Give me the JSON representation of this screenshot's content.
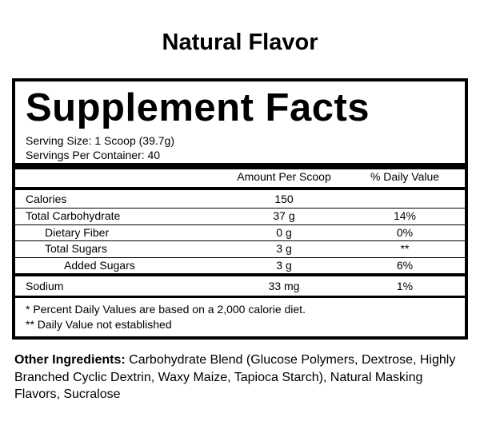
{
  "header": {
    "title": "Natural Flavor"
  },
  "panel": {
    "title": "Supplement Facts",
    "serving_size": "Serving Size: 1 Scoop (39.7g)",
    "servings_per_container": "Servings Per Container: 40"
  },
  "table": {
    "columns": [
      "Amount Per Scoop",
      "% Daily Value"
    ],
    "rows": [
      {
        "label": "Calories",
        "amount": "150",
        "daily_value": ""
      },
      {
        "label": "Total Carbohydrate",
        "amount": "37 g",
        "daily_value": "14%"
      },
      {
        "label": "Dietary Fiber",
        "amount": "0 g",
        "daily_value": "0%"
      },
      {
        "label": "Total Sugars",
        "amount": "3 g",
        "daily_value": "**"
      },
      {
        "label": "Added Sugars",
        "amount": "3 g",
        "daily_value": "6%"
      },
      {
        "label": "Sodium",
        "amount": "33 mg",
        "daily_value": "1%"
      }
    ]
  },
  "footnotes": [
    "* Percent Daily Values are based on a 2,000 calorie diet.",
    "** Daily Value not established"
  ],
  "ingredients": {
    "label": "Other Ingredients:",
    "text": "Carbohydrate Blend (Glucose Polymers, Dextrose, Highly Branched Cyclic Dextrin, Waxy Maize, Tapioca Starch), Natural Masking Flavors, Sucralose"
  }
}
